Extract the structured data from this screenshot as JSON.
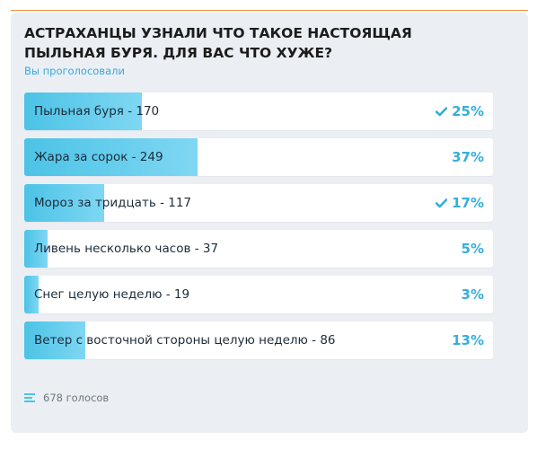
{
  "poll": {
    "title": "АСТРАХАНЦЫ УЗНАЛИ ЧТО ТАКОЕ НАСТОЯЩАЯ ПЫЛЬНАЯ БУРЯ. ДЛЯ ВАС ЧТО ХУЖЕ?",
    "subtitle": "Вы проголосовали",
    "options": [
      {
        "label": "Пыльная буря - 170",
        "percent": "25%",
        "share": 25,
        "selected": true,
        "check_icon": "check-icon"
      },
      {
        "label": "Жара за сорок - 249",
        "percent": "37%",
        "share": 37,
        "selected": false
      },
      {
        "label": "Мороз за тридцать - 117",
        "percent": "17%",
        "share": 17,
        "selected": true,
        "check_icon": "check-icon"
      },
      {
        "label": "Ливень несколько часов - 37",
        "percent": "5%",
        "share": 5,
        "selected": false
      },
      {
        "label": "Снег целую неделю - 19",
        "percent": "3%",
        "share": 3,
        "selected": false
      },
      {
        "label": "Ветер с восточной стороны целую неделю - 86",
        "percent": "13%",
        "share": 13,
        "selected": false
      }
    ],
    "footer": {
      "icon": "list-icon",
      "votes": "678 голосов"
    }
  },
  "colors": {
    "accent_line": "#f08a3c",
    "fill_start": "#4cc3e6",
    "fill_end": "#7fd7f3",
    "percent": "#36aedb",
    "background": "#ebeff4"
  }
}
